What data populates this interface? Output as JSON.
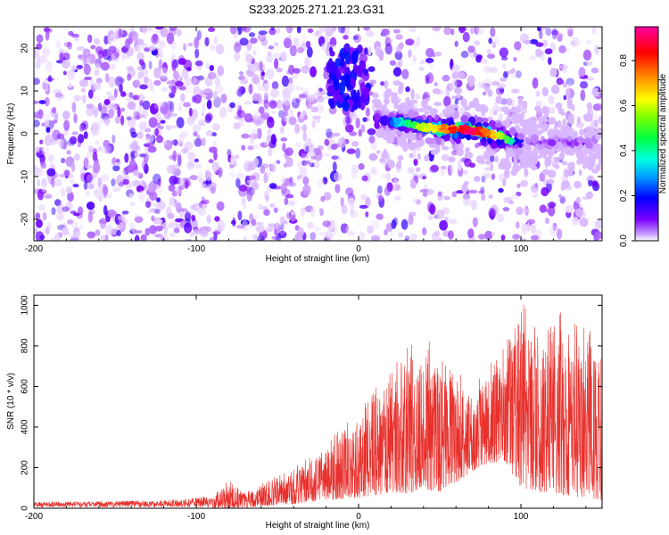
{
  "title": "S233.2025.271.21.23.G31",
  "colors": {
    "signal": "#e8302c",
    "frame": "#000000",
    "background": "#ffffff"
  },
  "chart_data": [
    {
      "type": "heatmap",
      "title": "S233.2025.271.21.23.G31",
      "xlabel": "Height of straight line (km)",
      "ylabel": "Frequency (Hz)",
      "xlim": [
        -200,
        150
      ],
      "ylim": [
        -25,
        25
      ],
      "x_ticks": [
        -200,
        -100,
        0,
        100
      ],
      "x_tick_labels": [
        "-200",
        "-100",
        "0",
        "100"
      ],
      "y_ticks": [
        -20,
        -10,
        0,
        10,
        20
      ],
      "y_tick_labels": [
        "-20",
        "-10",
        "0",
        "10",
        "20"
      ],
      "colorbar": {
        "label": "Normalized spectral amplitude",
        "range": [
          0,
          0.95
        ],
        "ticks": [
          0,
          0.2,
          0.4,
          0.6,
          0.8
        ],
        "tick_labels": [
          "0.0",
          "0.2",
          "0.4",
          "0.6",
          "0.8"
        ],
        "colormap": [
          "#ffffff",
          "#7a00ff",
          "#0000ff",
          "#00e0ff",
          "#00ff60",
          "#b0ff00",
          "#ffff00",
          "#ff9000",
          "#ff0000",
          "#ff00a0"
        ]
      },
      "ridge": {
        "description": "dominant frequency ridge of high amplitude",
        "height_km": [
          20,
          30,
          40,
          50,
          60,
          70,
          80,
          90,
          100
        ],
        "frequency_hz": [
          3,
          2.5,
          1.5,
          1.2,
          1,
          0.8,
          0,
          -1,
          -2
        ],
        "amplitude": [
          0.25,
          0.45,
          0.6,
          0.75,
          0.9,
          0.95,
          0.85,
          0.5,
          0.3
        ]
      }
    },
    {
      "type": "line",
      "xlabel": "Height of straight line (km)",
      "ylabel": "SNR (10 * v/v)",
      "xlim": [
        -200,
        150
      ],
      "ylim": [
        0,
        1050
      ],
      "x_ticks": [
        -200,
        -100,
        0,
        100
      ],
      "x_tick_labels": [
        "-200",
        "-100",
        "0",
        "100"
      ],
      "y_ticks": [
        0,
        200,
        400,
        600,
        800,
        1000
      ],
      "y_tick_labels": [
        "0",
        "200",
        "400",
        "600",
        "800",
        "1000"
      ],
      "envelope": {
        "description": "approximate upper envelope of the noisy SNR trace",
        "height_km": [
          -200,
          -160,
          -120,
          -90,
          -80,
          -70,
          -60,
          -40,
          -20,
          0,
          10,
          20,
          30,
          40,
          50,
          60,
          70,
          80,
          90,
          100,
          110,
          120,
          130,
          140,
          150
        ],
        "snr_max": [
          30,
          35,
          40,
          60,
          140,
          80,
          120,
          200,
          330,
          490,
          600,
          700,
          800,
          870,
          770,
          700,
          630,
          730,
          800,
          1040,
          900,
          920,
          1030,
          900,
          800
        ],
        "snr_min": [
          0,
          0,
          0,
          0,
          0,
          0,
          10,
          20,
          40,
          50,
          60,
          80,
          70,
          90,
          80,
          120,
          180,
          220,
          230,
          100,
          80,
          70,
          60,
          50,
          40
        ]
      }
    }
  ]
}
